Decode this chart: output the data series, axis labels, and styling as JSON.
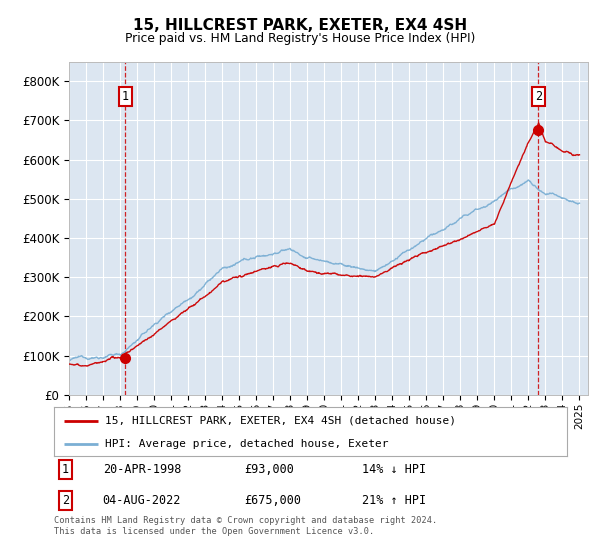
{
  "title": "15, HILLCREST PARK, EXETER, EX4 4SH",
  "subtitle": "Price paid vs. HM Land Registry's House Price Index (HPI)",
  "background_color": "#ffffff",
  "plot_bg_color": "#dce6f1",
  "grid_color": "#ffffff",
  "ylabel_ticks": [
    "£0",
    "£100K",
    "£200K",
    "£300K",
    "£400K",
    "£500K",
    "£600K",
    "£700K",
    "£800K"
  ],
  "ytick_values": [
    0,
    100000,
    200000,
    300000,
    400000,
    500000,
    600000,
    700000,
    800000
  ],
  "ylim": [
    0,
    850000
  ],
  "xlim_start": 1995.0,
  "xlim_end": 2025.5,
  "sale_dates": [
    1998.3,
    2022.58
  ],
  "sale_prices": [
    93000,
    675000
  ],
  "sale_labels": [
    "1",
    "2"
  ],
  "sale_color": "#cc0000",
  "hpi_color": "#7bafd4",
  "vline_color": "#cc0000",
  "legend_label_red": "15, HILLCREST PARK, EXETER, EX4 4SH (detached house)",
  "legend_label_blue": "HPI: Average price, detached house, Exeter",
  "annotation_1_date": "20-APR-1998",
  "annotation_1_price": "£93,000",
  "annotation_1_hpi": "14% ↓ HPI",
  "annotation_2_date": "04-AUG-2022",
  "annotation_2_price": "£675,000",
  "annotation_2_hpi": "21% ↑ HPI",
  "footnote": "Contains HM Land Registry data © Crown copyright and database right 2024.\nThis data is licensed under the Open Government Licence v3.0."
}
